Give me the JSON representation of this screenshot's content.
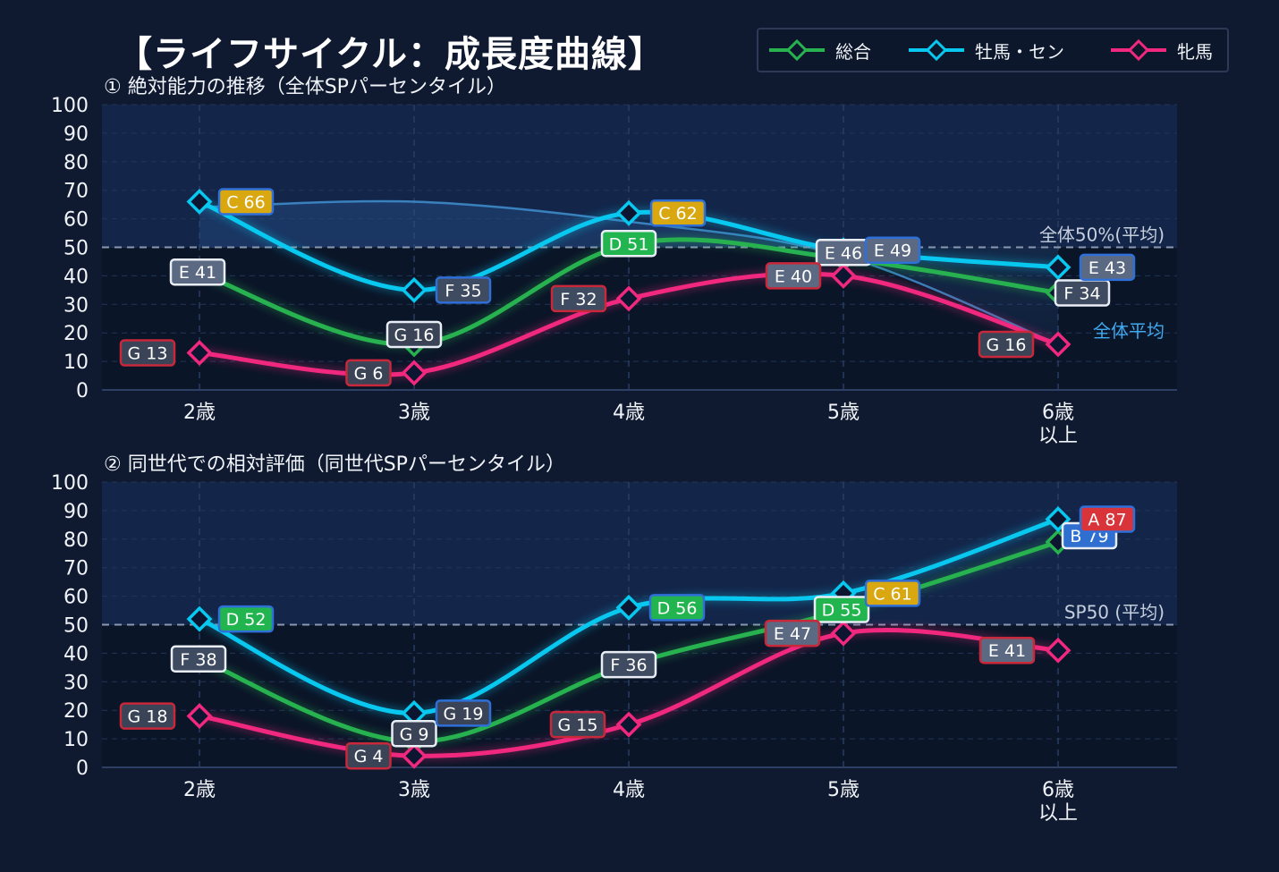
{
  "title": "【ライフサイクル：成長度曲線】",
  "colors": {
    "background": "#0f1a30",
    "total": "#27b24f",
    "male": "#08c8f0",
    "female": "#f0287e",
    "average_line": "#3f8fcf",
    "grade_A": "#d8343a",
    "grade_B": "#2f6fd0",
    "grade_C": "#d9a710",
    "grade_D": "#22b54f",
    "grade_E": "#5b6a82",
    "grade_F": "#3f4b60",
    "grade_G": "#3a4456"
  },
  "legend": [
    {
      "key": "total",
      "label": "総合",
      "icon": "diamond-line-icon"
    },
    {
      "key": "male",
      "label": "牡馬・セン",
      "icon": "diamond-line-icon"
    },
    {
      "key": "female",
      "label": "牝馬",
      "icon": "diamond-line-icon"
    }
  ],
  "chart_data": [
    {
      "type": "line",
      "title": "① 絶対能力の推移（全体SPパーセンタイル）",
      "categories": [
        "2歳",
        "3歳",
        "4歳",
        "5歳",
        "6歳\n以上"
      ],
      "ylim": [
        0,
        100
      ],
      "yticks": [
        0,
        10,
        20,
        30,
        40,
        50,
        60,
        70,
        80,
        90,
        100
      ],
      "reference_line": {
        "value": 50,
        "label": "全体50%(平均)"
      },
      "average_curve": {
        "label": "全体平均",
        "values": [
          64,
          66,
          59,
          47,
          16
        ]
      },
      "series": [
        {
          "key": "total",
          "name": "総合",
          "values": [
            41,
            16,
            51,
            46,
            34
          ],
          "labels": [
            "E 41",
            "G 16",
            "D 51",
            "E 46",
            "F 34"
          ]
        },
        {
          "key": "male",
          "name": "牡馬・セン",
          "values": [
            66,
            35,
            62,
            49,
            43
          ],
          "labels": [
            "C 66",
            "F 35",
            "C 62",
            "E 49",
            "E 43"
          ]
        },
        {
          "key": "female",
          "name": "牝馬",
          "values": [
            13,
            6,
            32,
            40,
            16
          ],
          "labels": [
            "G 13",
            "G 6",
            "F 32",
            "E 40",
            "G 16"
          ]
        }
      ]
    },
    {
      "type": "line",
      "title": "② 同世代での相対評価（同世代SPパーセンタイル）",
      "categories": [
        "2歳",
        "3歳",
        "4歳",
        "5歳",
        "6歳\n以上"
      ],
      "ylim": [
        0,
        100
      ],
      "yticks": [
        0,
        10,
        20,
        30,
        40,
        50,
        60,
        70,
        80,
        90,
        100
      ],
      "reference_line": {
        "value": 50,
        "label": "SP50 (平均)"
      },
      "series": [
        {
          "key": "total",
          "name": "総合",
          "values": [
            38,
            9,
            36,
            55,
            79
          ],
          "labels": [
            "F 38",
            "G 9",
            "F 36",
            "D 55",
            "B 79"
          ]
        },
        {
          "key": "male",
          "name": "牡馬・セン",
          "values": [
            52,
            19,
            56,
            61,
            87
          ],
          "labels": [
            "D 52",
            "G 19",
            "D 56",
            "C 61",
            "A 87"
          ]
        },
        {
          "key": "female",
          "name": "牝馬",
          "values": [
            18,
            4,
            15,
            47,
            41
          ],
          "labels": [
            "G 18",
            "G 4",
            "G 15",
            "E 47",
            "E 41"
          ]
        }
      ]
    }
  ]
}
